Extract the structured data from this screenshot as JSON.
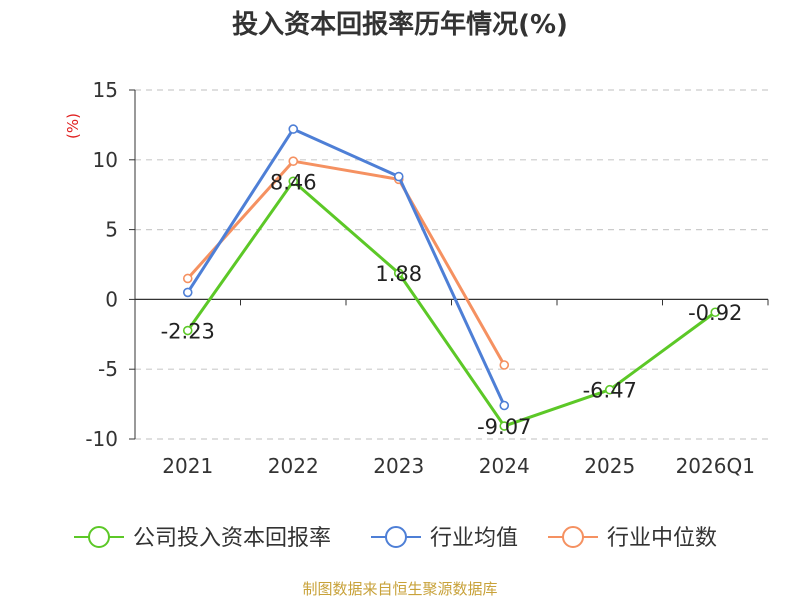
{
  "chart_data": {
    "type": "line",
    "title": "投入资本回报率历年情况(%)",
    "ylabel": "(%)",
    "categories": [
      "2021",
      "2022",
      "2023",
      "2024",
      "2025",
      "2026Q1"
    ],
    "ylim": [
      -10,
      15
    ],
    "yticks": [
      15,
      10,
      5,
      0,
      -5,
      -10
    ],
    "grid": true,
    "legend_position": "bottom",
    "series": [
      {
        "name": "公司投入资本回报率",
        "color": "#5cc827",
        "values": [
          -2.23,
          8.46,
          1.88,
          -9.07,
          -6.47,
          -0.92
        ],
        "labels": [
          "-2.23",
          "8.46",
          "1.88",
          "-9.07",
          "-6.47",
          "-0.92"
        ]
      },
      {
        "name": "行业均值",
        "color": "#4e7fd6",
        "values": [
          0.5,
          12.2,
          8.8,
          -7.6,
          null,
          null
        ]
      },
      {
        "name": "行业中位数",
        "color": "#f59161",
        "values": [
          1.5,
          9.9,
          8.6,
          -4.7,
          null,
          null
        ]
      }
    ]
  },
  "source": "制图数据来自恒生聚源数据库"
}
